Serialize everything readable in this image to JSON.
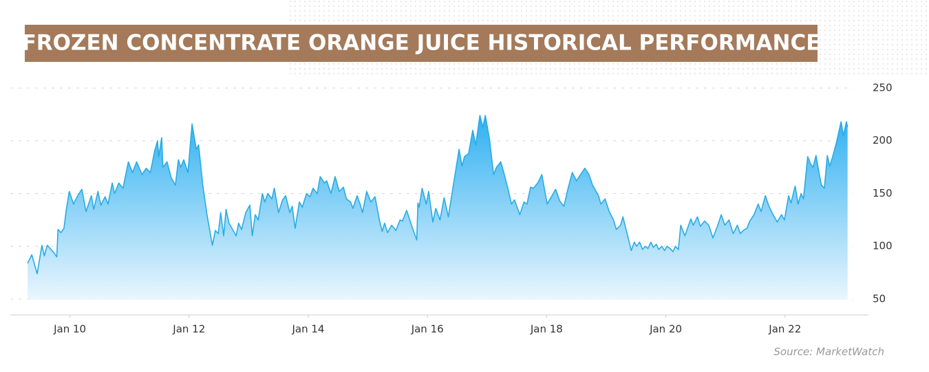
{
  "chart_data": {
    "type": "area",
    "title": "FROZEN CONCENTRATE ORANGE JUICE HISTORICAL PERFORMANCE",
    "source": "Source: MarketWatch",
    "color": "#29abe2",
    "grid": true,
    "xlim": [
      2009,
      2023.4
    ],
    "xticks": [
      {
        "value": 2010,
        "label": "Jan 10"
      },
      {
        "value": 2012,
        "label": "Jan 12"
      },
      {
        "value": 2014,
        "label": "Jan 14"
      },
      {
        "value": 2016,
        "label": "Jan 16"
      },
      {
        "value": 2018,
        "label": "Jan 18"
      },
      {
        "value": 2020,
        "label": "Jan 20"
      },
      {
        "value": 2022,
        "label": "Jan 22"
      }
    ],
    "ylim": [
      35,
      250
    ],
    "yticks": [
      50,
      100,
      150,
      200,
      250
    ],
    "x": [
      2009.29,
      2009.36,
      2009.45,
      2009.53,
      2009.57,
      2009.62,
      2009.73,
      2009.78,
      2009.8,
      2009.85,
      2009.9,
      2009.94,
      2009.99,
      2010.06,
      2010.13,
      2010.2,
      2010.27,
      2010.36,
      2010.4,
      2010.47,
      2010.52,
      2010.59,
      2010.64,
      2010.71,
      2010.75,
      2010.82,
      2010.89,
      2010.98,
      2011.05,
      2011.12,
      2011.21,
      2011.28,
      2011.35,
      2011.42,
      2011.47,
      2011.49,
      2011.54,
      2011.56,
      2011.63,
      2011.7,
      2011.77,
      2011.82,
      2011.86,
      2011.91,
      2011.98,
      2012.05,
      2012.12,
      2012.16,
      2012.23,
      2012.3,
      2012.39,
      2012.44,
      2012.49,
      2012.53,
      2012.58,
      2012.62,
      2012.67,
      2012.72,
      2012.79,
      2012.83,
      2012.88,
      2012.95,
      2013.02,
      2013.06,
      2013.11,
      2013.16,
      2013.23,
      2013.27,
      2013.32,
      2013.39,
      2013.43,
      2013.5,
      2013.57,
      2013.62,
      2013.69,
      2013.73,
      2013.78,
      2013.85,
      2013.9,
      2013.97,
      2014.03,
      2014.08,
      2014.15,
      2014.2,
      2014.27,
      2014.31,
      2014.38,
      2014.45,
      2014.52,
      2014.59,
      2014.64,
      2014.71,
      2014.75,
      2014.82,
      2014.87,
      2014.91,
      2014.98,
      2015.05,
      2015.12,
      2015.19,
      2015.24,
      2015.28,
      2015.33,
      2015.4,
      2015.47,
      2015.54,
      2015.58,
      2015.65,
      2015.75,
      2015.82,
      2015.84,
      2015.86,
      2015.91,
      2015.98,
      2016.02,
      2016.09,
      2016.14,
      2016.21,
      2016.28,
      2016.35,
      2016.44,
      2016.53,
      2016.58,
      2016.62,
      2016.69,
      2016.76,
      2016.81,
      2016.88,
      2016.93,
      2016.97,
      2017.04,
      2017.11,
      2017.16,
      2017.23,
      2017.27,
      2017.34,
      2017.41,
      2017.46,
      2017.55,
      2017.62,
      2017.67,
      2017.73,
      2017.78,
      2017.85,
      2017.92,
      2018.01,
      2018.08,
      2018.15,
      2018.22,
      2018.29,
      2018.36,
      2018.43,
      2018.5,
      2018.57,
      2018.64,
      2018.71,
      2018.77,
      2018.87,
      2018.91,
      2018.98,
      2019.05,
      2019.12,
      2019.17,
      2019.24,
      2019.28,
      2019.35,
      2019.42,
      2019.47,
      2019.51,
      2019.56,
      2019.61,
      2019.65,
      2019.7,
      2019.75,
      2019.79,
      2019.84,
      2019.88,
      2019.93,
      2019.98,
      2020.02,
      2020.07,
      2020.12,
      2020.16,
      2020.21,
      2020.25,
      2020.32,
      2020.42,
      2020.46,
      2020.53,
      2020.58,
      2020.65,
      2020.72,
      2020.79,
      2020.86,
      2020.93,
      2020.99,
      2021.06,
      2021.13,
      2021.2,
      2021.25,
      2021.3,
      2021.36,
      2021.41,
      2021.48,
      2021.55,
      2021.6,
      2021.67,
      2021.73,
      2021.8,
      2021.87,
      2021.94,
      2021.99,
      2022.06,
      2022.1,
      2022.17,
      2022.22,
      2022.27,
      2022.31,
      2022.38,
      2022.43,
      2022.47,
      2022.52,
      2022.57,
      2022.61,
      2022.66,
      2022.71,
      2022.75,
      2022.8,
      2022.87,
      2022.94,
      2022.98,
      2023.03,
      2023.05
    ],
    "values": [
      84,
      92,
      74,
      101,
      91,
      101,
      94,
      90,
      116,
      113,
      117,
      135,
      152,
      140,
      148,
      154,
      133,
      148,
      135,
      152,
      139,
      147,
      140,
      160,
      150,
      160,
      155,
      180,
      170,
      180,
      168,
      174,
      170,
      190,
      200,
      185,
      203,
      175,
      180,
      165,
      158,
      182,
      175,
      182,
      170,
      216,
      192,
      196,
      158,
      130,
      101,
      115,
      112,
      132,
      110,
      135,
      122,
      117,
      110,
      122,
      116,
      132,
      139,
      110,
      130,
      125,
      150,
      142,
      150,
      145,
      155,
      132,
      144,
      148,
      132,
      138,
      117,
      142,
      137,
      150,
      147,
      155,
      150,
      166,
      160,
      162,
      150,
      166,
      152,
      156,
      145,
      142,
      136,
      148,
      140,
      132,
      152,
      142,
      147,
      126,
      114,
      122,
      113,
      120,
      115,
      125,
      124,
      134,
      117,
      106,
      141,
      137,
      155,
      140,
      152,
      123,
      136,
      125,
      146,
      128,
      160,
      192,
      176,
      185,
      188,
      210,
      196,
      224,
      213,
      224,
      202,
      168,
      175,
      180,
      172,
      157,
      140,
      144,
      130,
      142,
      140,
      156,
      155,
      160,
      168,
      140,
      147,
      154,
      143,
      138,
      155,
      170,
      162,
      168,
      174,
      168,
      158,
      148,
      140,
      145,
      133,
      125,
      116,
      120,
      128,
      112,
      96,
      104,
      100,
      104,
      97,
      100,
      98,
      104,
      99,
      102,
      97,
      100,
      96,
      100,
      98,
      95,
      100,
      97,
      120,
      110,
      126,
      120,
      128,
      119,
      124,
      120,
      108,
      118,
      130,
      120,
      125,
      112,
      120,
      112,
      115,
      117,
      124,
      130,
      140,
      133,
      148,
      138,
      130,
      123,
      130,
      125,
      148,
      141,
      157,
      140,
      150,
      145,
      185,
      178,
      175,
      186,
      170,
      158,
      155,
      186,
      176,
      185,
      200,
      218,
      205,
      218,
      213
    ]
  }
}
